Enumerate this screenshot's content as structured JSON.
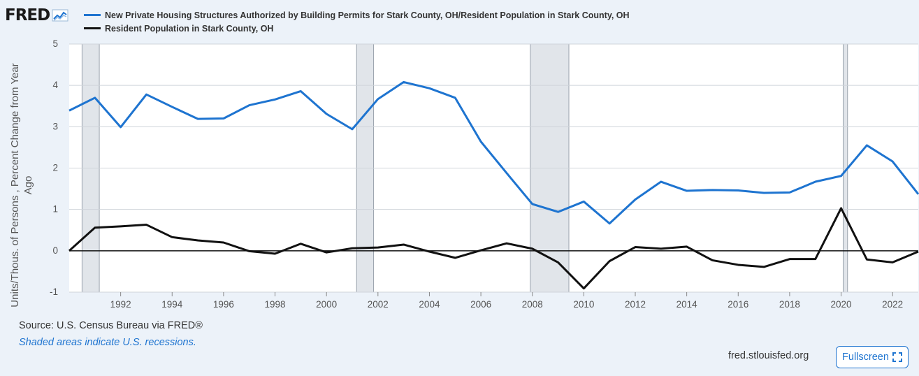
{
  "brand": {
    "logo_text": "FRED"
  },
  "legend": [
    {
      "label": "New Private Housing Structures Authorized by Building Permits for Stark County, OH/Resident Population in Stark County, OH",
      "color": "#1e74d0"
    },
    {
      "label": "Resident Population in Stark County, OH",
      "color": "#111111"
    }
  ],
  "footer": {
    "source": "U.S. Census Bureau via FRED®",
    "source_prefix": "Source: ",
    "recession_note": "Shaded areas indicate U.S. recessions.",
    "site": "fred.stlouisfed.org",
    "fullscreen_label": "Fullscreen"
  },
  "chart_data": {
    "type": "line",
    "ylabel": "Units/Thous. of Persons , Percent Change from Year Ago",
    "xlim": [
      1990,
      2023
    ],
    "ylim": [
      -1,
      5
    ],
    "yticks": [
      -1,
      0,
      1,
      2,
      3,
      4,
      5
    ],
    "xticks": [
      1992,
      1994,
      1996,
      1998,
      2000,
      2002,
      2004,
      2006,
      2008,
      2010,
      2012,
      2014,
      2016,
      2018,
      2020,
      2022
    ],
    "grid": true,
    "recessions": [
      [
        1990.5,
        1991.17
      ],
      [
        2001.17,
        2001.83
      ],
      [
        2007.92,
        2009.42
      ],
      [
        2020.08,
        2020.25
      ]
    ],
    "x": [
      1990,
      1991,
      1992,
      1993,
      1994,
      1995,
      1996,
      1997,
      1998,
      1999,
      2000,
      2001,
      2002,
      2003,
      2004,
      2005,
      2006,
      2007,
      2008,
      2009,
      2010,
      2011,
      2012,
      2013,
      2014,
      2015,
      2016,
      2017,
      2018,
      2019,
      2020,
      2021,
      2022,
      2023
    ],
    "series": [
      {
        "name": "New Private Housing Structures Authorized by Building Permits for Stark County, OH/Resident Population in Stark County, OH",
        "color": "#1e74d0",
        "values": [
          3.39,
          3.7,
          2.99,
          3.78,
          3.48,
          3.19,
          3.2,
          3.52,
          3.66,
          3.86,
          3.31,
          2.94,
          3.67,
          4.08,
          3.93,
          3.7,
          2.64,
          1.88,
          1.13,
          0.94,
          1.19,
          0.66,
          1.24,
          1.67,
          1.45,
          1.47,
          1.46,
          1.4,
          1.41,
          1.67,
          1.81,
          2.55,
          2.16,
          1.37
        ]
      },
      {
        "name": "Resident Population in Stark County, OH",
        "color": "#111111",
        "values": [
          0.0,
          0.56,
          0.59,
          0.63,
          0.33,
          0.25,
          0.2,
          -0.01,
          -0.07,
          0.17,
          -0.04,
          0.06,
          0.08,
          0.15,
          -0.02,
          -0.17,
          0.01,
          0.18,
          0.05,
          -0.28,
          -0.91,
          -0.25,
          0.09,
          0.05,
          0.1,
          -0.23,
          -0.34,
          -0.39,
          -0.2,
          -0.2,
          1.03,
          -0.21,
          -0.28,
          -0.02
        ]
      }
    ]
  }
}
